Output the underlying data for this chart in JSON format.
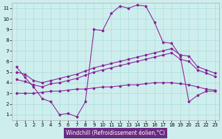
{
  "xlabel": "Windchill (Refroidissement éolien,°C)",
  "bg_color": "#ceeeed",
  "line_color": "#882299",
  "grid_color": "#aadddb",
  "xlim_min": -0.5,
  "xlim_max": 23.5,
  "ylim_min": 0.5,
  "ylim_max": 11.5,
  "xticks": [
    0,
    1,
    2,
    3,
    4,
    5,
    6,
    7,
    8,
    9,
    10,
    11,
    12,
    13,
    14,
    15,
    16,
    17,
    18,
    19,
    20,
    21,
    22,
    23
  ],
  "yticks": [
    1,
    2,
    3,
    4,
    5,
    6,
    7,
    8,
    9,
    10,
    11
  ],
  "line1_x": [
    0,
    1,
    2,
    3,
    4,
    5,
    6,
    7,
    8,
    9,
    10,
    11,
    12,
    13,
    14,
    15,
    16,
    17,
    18,
    19,
    20,
    21,
    22,
    23
  ],
  "line1_y": [
    5.5,
    4.5,
    3.6,
    2.5,
    2.2,
    1.0,
    1.1,
    0.8,
    2.2,
    9.0,
    8.9,
    10.5,
    11.2,
    11.0,
    11.3,
    11.2,
    9.7,
    7.8,
    7.7,
    6.5,
    2.2,
    2.8,
    3.2,
    3.2
  ],
  "line2_x": [
    0,
    1,
    2,
    3,
    4,
    5,
    6,
    7,
    8,
    9,
    10,
    11,
    12,
    13,
    14,
    15,
    16,
    17,
    18,
    19,
    20,
    21,
    22,
    23
  ],
  "line2_y": [
    5.0,
    4.8,
    4.2,
    4.0,
    4.2,
    4.4,
    4.6,
    4.8,
    5.1,
    5.4,
    5.6,
    5.8,
    6.0,
    6.2,
    6.4,
    6.6,
    6.8,
    7.0,
    7.2,
    6.6,
    6.5,
    5.5,
    5.2,
    4.9
  ],
  "line3_x": [
    0,
    1,
    2,
    3,
    4,
    5,
    6,
    7,
    8,
    9,
    10,
    11,
    12,
    13,
    14,
    15,
    16,
    17,
    18,
    19,
    20,
    21,
    22,
    23
  ],
  "line3_y": [
    4.3,
    4.1,
    3.8,
    3.6,
    3.9,
    4.0,
    4.2,
    4.4,
    4.7,
    5.0,
    5.2,
    5.4,
    5.6,
    5.8,
    6.0,
    6.2,
    6.4,
    6.6,
    6.8,
    6.2,
    6.0,
    5.2,
    4.9,
    4.6
  ],
  "line4_x": [
    0,
    1,
    2,
    3,
    4,
    5,
    6,
    7,
    8,
    9,
    10,
    11,
    12,
    13,
    14,
    15,
    16,
    17,
    18,
    19,
    20,
    21,
    22,
    23
  ],
  "line4_y": [
    3.0,
    3.0,
    3.0,
    3.1,
    3.2,
    3.2,
    3.3,
    3.4,
    3.4,
    3.5,
    3.6,
    3.6,
    3.7,
    3.8,
    3.8,
    3.9,
    4.0,
    4.0,
    4.0,
    3.9,
    3.8,
    3.6,
    3.4,
    3.3
  ],
  "xlabel_bg": "#6b2a82",
  "xlabel_fg": "white",
  "tick_fontsize": 5.0,
  "xlabel_fontsize": 5.5
}
